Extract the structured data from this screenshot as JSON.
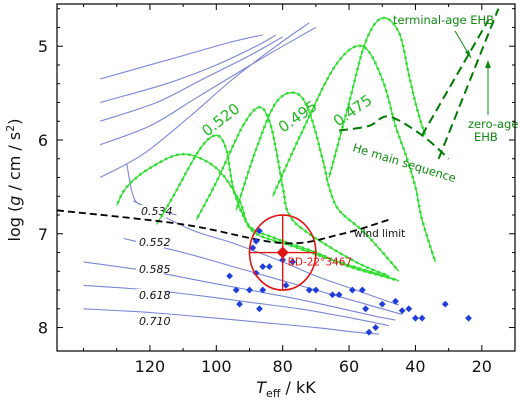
{
  "chart_data": {
    "type": "scatter",
    "title": "",
    "xlabel": {
      "sym": "T",
      "sub": "eff",
      "unit": " / kK"
    },
    "ylabel": {
      "pre": "log (",
      "sym": "g",
      "mid": " / cm / s",
      "sup": "2",
      "post": ")"
    },
    "xlim": [
      148,
      10
    ],
    "ylim": [
      4.55,
      8.25
    ],
    "x_ticks": [
      120,
      100,
      80,
      60,
      40,
      20
    ],
    "y_ticks": [
      5,
      6,
      7,
      8
    ],
    "grid": false,
    "colors": {
      "blue_tracks": "#7b86d6",
      "green_tracks": "#33dd33",
      "ehb_lines": "#007a00",
      "wind_limit": "#000000",
      "star_points": "#1f3ddb",
      "target": "#e01414"
    },
    "post_agb_tracks": [
      {
        "mass": "0.534",
        "points": [
          [
            135,
            5.35
          ],
          [
            110,
            5.1
          ],
          [
            95,
            4.95
          ],
          [
            86,
            4.88
          ]
        ]
      },
      {
        "mass": "0.552",
        "points": [
          [
            135,
            5.6
          ],
          [
            115,
            5.4
          ],
          [
            100,
            5.2
          ],
          [
            88,
            5.0
          ],
          [
            82,
            4.88
          ]
        ]
      },
      {
        "mass": "0.585",
        "points": [
          [
            135,
            5.8
          ],
          [
            118,
            5.6
          ],
          [
            104,
            5.35
          ],
          [
            90,
            5.1
          ],
          [
            80,
            4.9
          ]
        ]
      },
      {
        "mass": "0.618",
        "points": [
          [
            135,
            6.05
          ],
          [
            120,
            5.85
          ],
          [
            106,
            5.55
          ],
          [
            92,
            5.25
          ],
          [
            80,
            5.0
          ],
          [
            70,
            4.8
          ]
        ]
      },
      {
        "mass": "0.710",
        "points": [
          [
            135,
            6.4
          ],
          [
            122,
            6.15
          ],
          [
            108,
            5.75
          ],
          [
            95,
            5.35
          ],
          [
            82,
            5.0
          ],
          [
            72,
            4.75
          ]
        ]
      },
      {
        "mass": "",
        "points": [
          [
            127,
            6.25
          ],
          [
            125,
            6.6
          ],
          [
            122,
            6.7
          ],
          [
            112,
            6.8
          ]
        ]
      },
      {
        "mass": "0.534",
        "points": [
          [
            125,
            6.65
          ],
          [
            108,
            6.95
          ],
          [
            95,
            7.1
          ],
          [
            80,
            7.3
          ],
          [
            70,
            7.45
          ],
          [
            58,
            7.6
          ],
          [
            50,
            7.7
          ],
          [
            45,
            7.76
          ]
        ]
      },
      {
        "mass": "0.552",
        "points": [
          [
            128,
            7.05
          ],
          [
            110,
            7.2
          ],
          [
            95,
            7.35
          ],
          [
            82,
            7.48
          ],
          [
            70,
            7.6
          ],
          [
            58,
            7.72
          ],
          [
            48,
            7.82
          ],
          [
            44,
            7.86
          ]
        ]
      },
      {
        "mass": "0.585",
        "points": [
          [
            140,
            7.3
          ],
          [
            120,
            7.4
          ],
          [
            105,
            7.5
          ],
          [
            90,
            7.6
          ],
          [
            75,
            7.7
          ],
          [
            62,
            7.8
          ],
          [
            52,
            7.88
          ],
          [
            46,
            7.92
          ]
        ]
      },
      {
        "mass": "0.618",
        "points": [
          [
            140,
            7.55
          ],
          [
            120,
            7.6
          ],
          [
            105,
            7.66
          ],
          [
            90,
            7.73
          ],
          [
            75,
            7.8
          ],
          [
            62,
            7.88
          ],
          [
            52,
            7.95
          ],
          [
            48,
            7.98
          ]
        ]
      },
      {
        "mass": "0.710",
        "points": [
          [
            140,
            7.8
          ],
          [
            120,
            7.84
          ],
          [
            100,
            7.9
          ],
          [
            85,
            7.95
          ],
          [
            70,
            8.0
          ],
          [
            58,
            8.05
          ],
          [
            51,
            8.07
          ]
        ]
      }
    ],
    "post_ehb_tracks": [
      {
        "mass": "",
        "points": [
          [
            130,
            6.7
          ],
          [
            127,
            6.5
          ],
          [
            120,
            6.3
          ],
          [
            110,
            6.15
          ],
          [
            100,
            6.3
          ],
          [
            93,
            6.65
          ],
          [
            90,
            6.92
          ],
          [
            82,
            7.05
          ],
          [
            70,
            7.2
          ],
          [
            60,
            7.35
          ],
          [
            50,
            7.45
          ],
          [
            45,
            7.5
          ]
        ]
      },
      {
        "mass": "",
        "points": [
          [
            118,
            6.9
          ],
          [
            113,
            6.6
          ],
          [
            105,
            6.1
          ],
          [
            100,
            5.95
          ],
          [
            97,
            6.1
          ],
          [
            95,
            6.5
          ],
          [
            92,
            6.8
          ],
          [
            88,
            7.0
          ],
          [
            78,
            7.12
          ],
          [
            65,
            7.28
          ],
          [
            52,
            7.42
          ],
          [
            45,
            7.5
          ]
        ]
      },
      {
        "mass": "",
        "points": [
          [
            106,
            6.85
          ],
          [
            100,
            6.45
          ],
          [
            92,
            5.85
          ],
          [
            87,
            5.65
          ],
          [
            84,
            5.8
          ],
          [
            82,
            6.1
          ],
          [
            80,
            6.5
          ],
          [
            78,
            6.8
          ],
          [
            72,
            7.0
          ],
          [
            58,
            7.3
          ],
          [
            48,
            7.45
          ]
        ]
      },
      {
        "mass": "0.520",
        "points": [
          [
            94,
            6.75
          ],
          [
            88,
            6.1
          ],
          [
            82,
            5.6
          ],
          [
            76,
            5.5
          ],
          [
            72,
            5.7
          ],
          [
            68,
            6.2
          ],
          [
            66,
            6.5
          ],
          [
            63,
            6.75
          ],
          [
            55,
            7.0
          ],
          [
            45,
            7.4
          ]
        ]
      },
      {
        "mass": "0.495",
        "points": [
          [
            83,
            6.6
          ],
          [
            74,
            5.9
          ],
          [
            64,
            5.2
          ],
          [
            56,
            5.0
          ],
          [
            50,
            5.35
          ],
          [
            46,
            5.85
          ],
          [
            43,
            6.15
          ],
          [
            40,
            6.5
          ],
          [
            38,
            6.85
          ],
          [
            34,
            7.3
          ]
        ]
      },
      {
        "mass": "0.475",
        "points": [
          [
            66,
            6.4
          ],
          [
            60,
            5.6
          ],
          [
            55,
            4.95
          ],
          [
            50,
            4.7
          ],
          [
            45,
            4.85
          ],
          [
            42,
            5.3
          ],
          [
            40,
            5.6
          ],
          [
            38,
            5.85
          ],
          [
            37,
            5.95
          ]
        ]
      }
    ],
    "ehb_lines": {
      "zero_age": [
        [
          33,
          6.2
        ],
        [
          15,
          4.6
        ]
      ],
      "terminal_age": [
        [
          38,
          5.95
        ],
        [
          18,
          4.72
        ]
      ]
    },
    "he_main_sequence": [
      [
        63,
        5.9
      ],
      [
        54,
        5.85
      ],
      [
        48,
        5.75
      ],
      [
        38,
        5.95
      ],
      [
        30,
        6.2
      ]
    ],
    "wind_limit": [
      [
        148,
        6.75
      ],
      [
        110,
        6.9
      ],
      [
        80,
        7.1
      ],
      [
        62,
        7.0
      ],
      [
        48,
        6.85
      ]
    ],
    "sample_stars": [
      [
        87,
        6.97
      ],
      [
        88,
        7.08
      ],
      [
        89,
        7.15
      ],
      [
        86,
        7.35
      ],
      [
        84,
        7.35
      ],
      [
        88,
        7.42
      ],
      [
        80,
        7.28
      ],
      [
        77,
        7.3
      ],
      [
        79,
        7.55
      ],
      [
        86,
        7.6
      ],
      [
        94,
        7.6
      ],
      [
        96,
        7.45
      ],
      [
        93,
        7.75
      ],
      [
        90,
        7.6
      ],
      [
        87,
        7.8
      ],
      [
        72,
        7.6
      ],
      [
        70,
        7.6
      ],
      [
        65,
        7.65
      ],
      [
        63,
        7.65
      ],
      [
        59,
        7.6
      ],
      [
        55,
        7.8
      ],
      [
        46,
        7.72
      ],
      [
        42,
        7.8
      ],
      [
        40,
        7.9
      ],
      [
        38,
        7.9
      ],
      [
        50,
        7.75
      ],
      [
        31,
        7.75
      ],
      [
        56,
        7.6
      ],
      [
        24,
        7.9
      ],
      [
        54,
        8.05
      ],
      [
        52,
        8.0
      ],
      [
        44,
        7.82
      ]
    ],
    "target": {
      "name": "BD-22°3467",
      "teff": 80,
      "logg": 7.2,
      "teff_err": 10,
      "logg_err": 0.4
    },
    "labels": {
      "terminal_age_ehb": "terminal-age EHB",
      "zero_age_ehb": [
        "zero-age",
        "EHB"
      ],
      "he_main_sequence": "He main sequence",
      "wind_limit": "wind limit"
    }
  }
}
